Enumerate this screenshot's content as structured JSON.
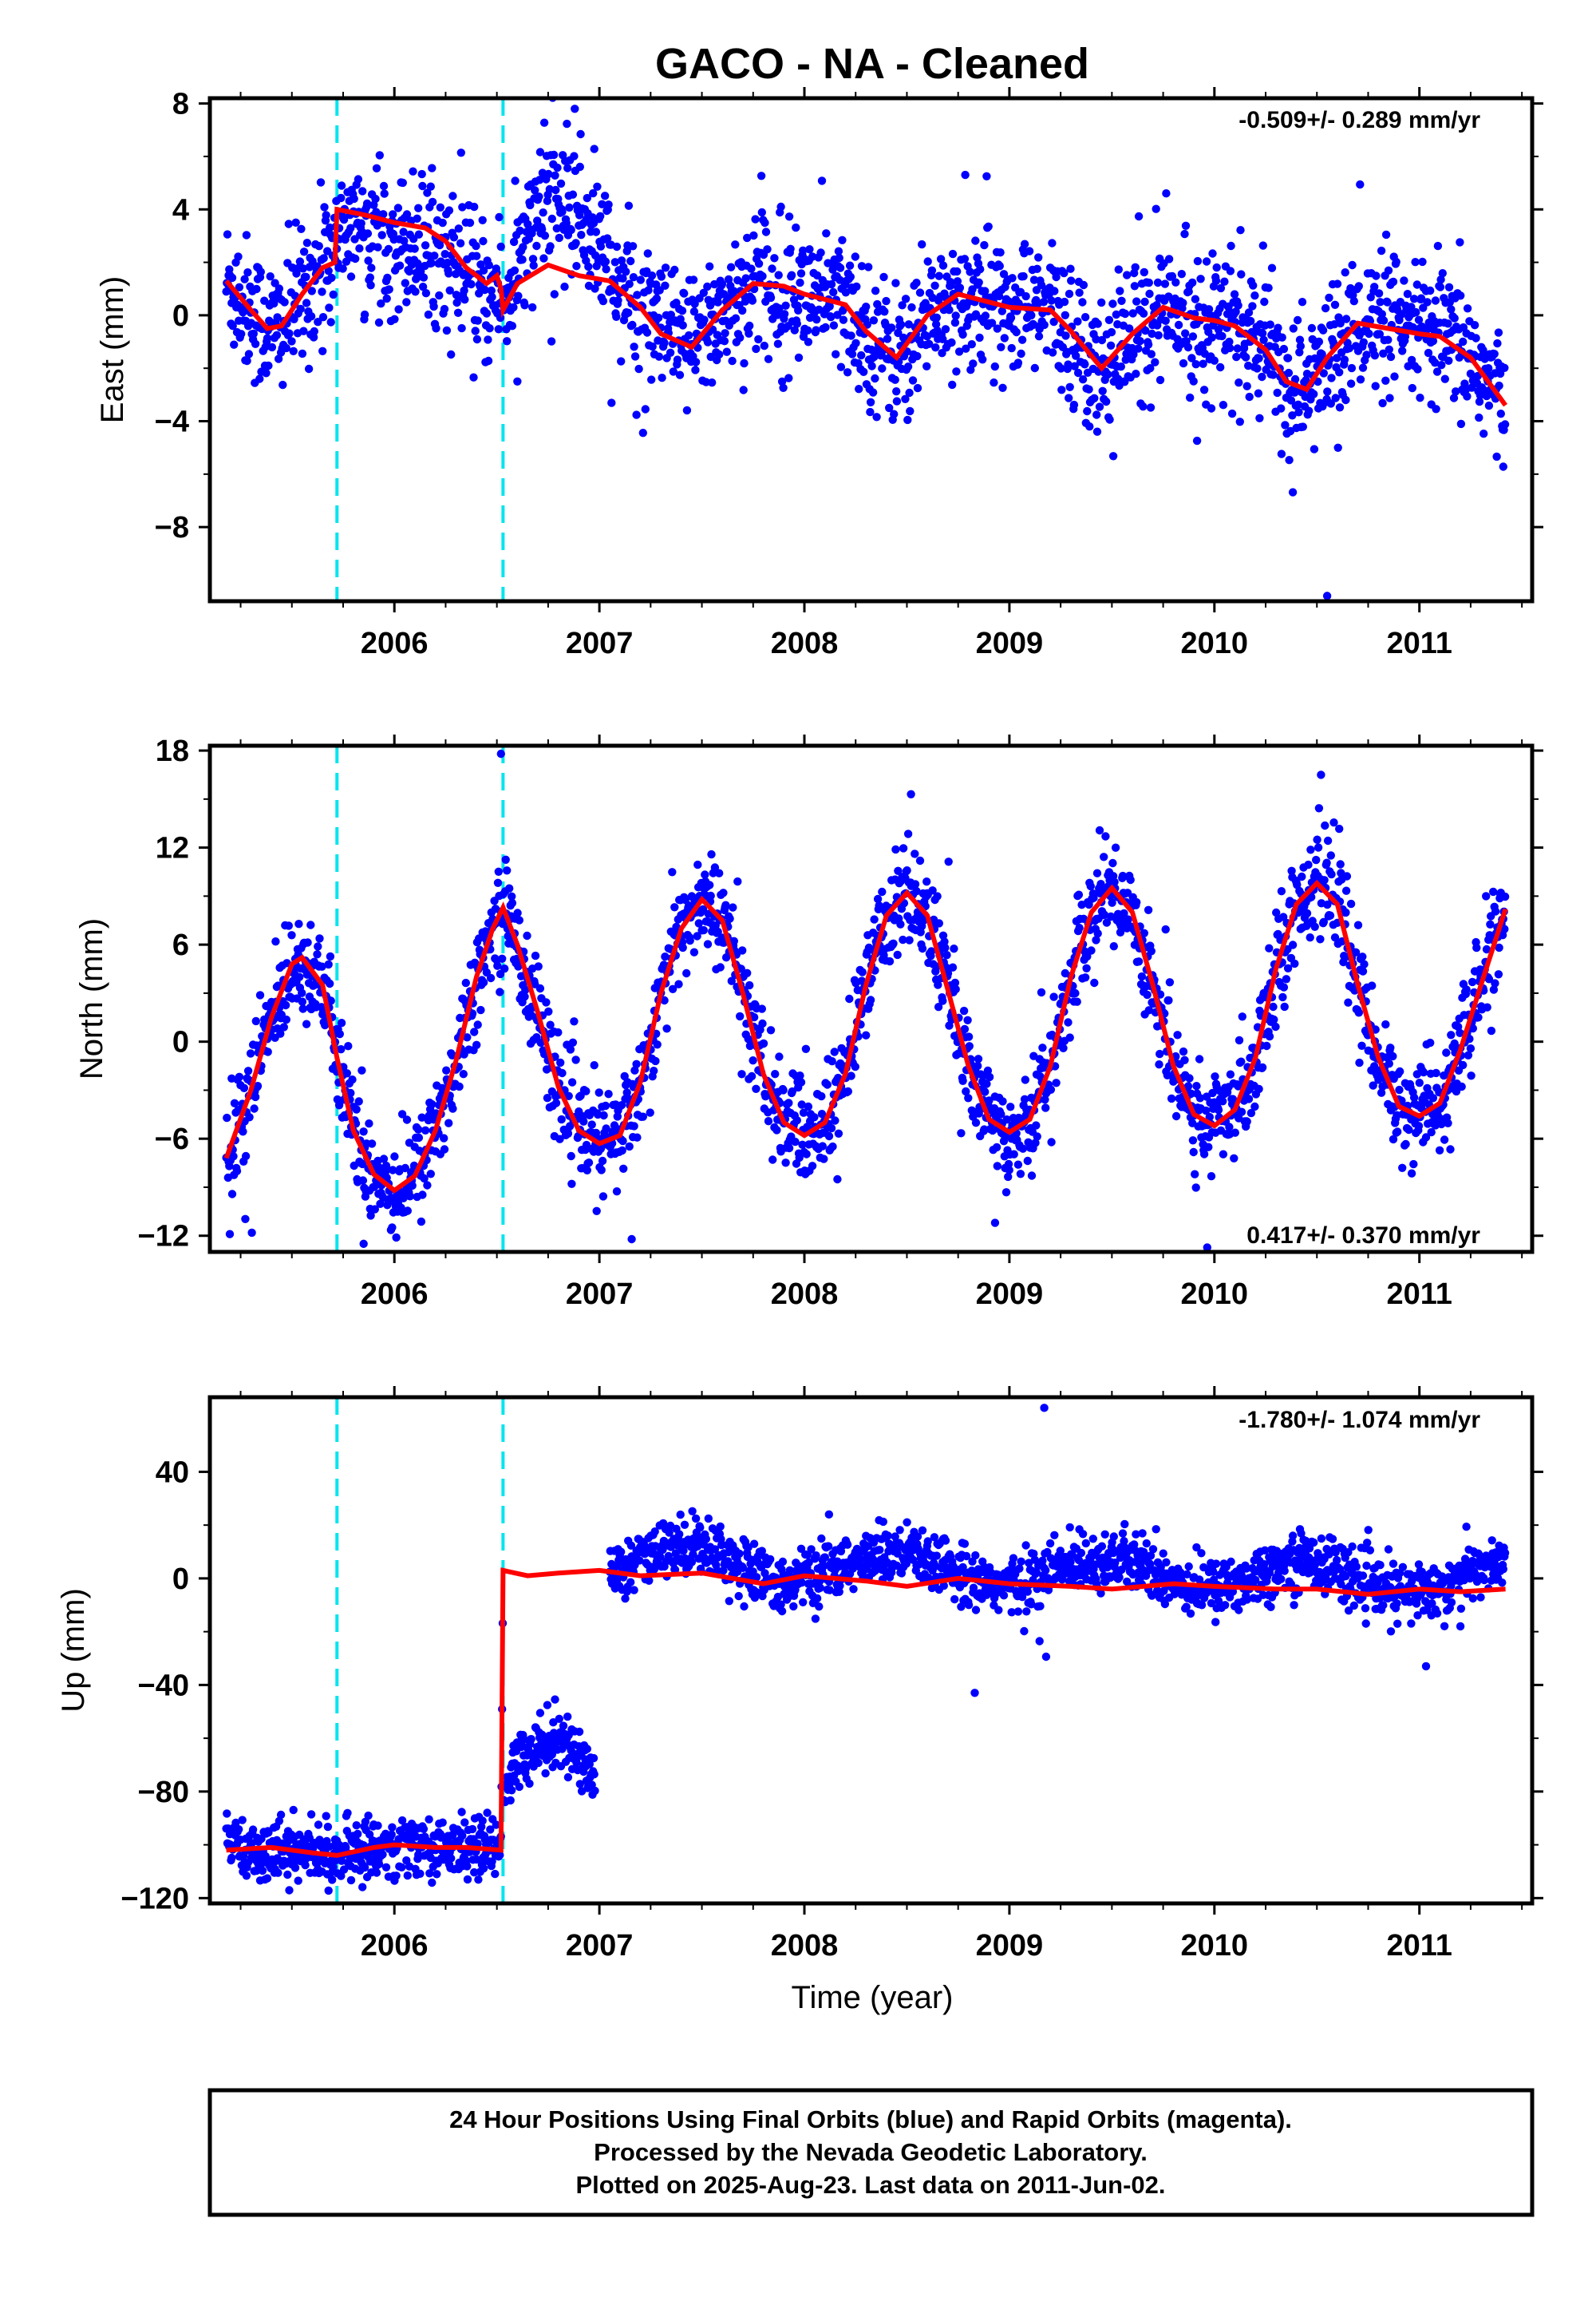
{
  "title": "GACO  - NA - Cleaned",
  "colors": {
    "final_orbits": "#0000ff",
    "rapid_orbits": "#ff00ff",
    "model_fit": "#ff0000",
    "offset_lines": "#00e5ee",
    "frame": "#000000"
  },
  "chart_data": [
    {
      "type": "scatter",
      "panel": "east",
      "ylabel": "East (mm)",
      "xlabel": "",
      "rate": "-0.509+/- 0.289 mm/yr",
      "rate_position": "top-right",
      "xlim": [
        2005.1,
        2011.55
      ],
      "ylim": [
        -10.8,
        8.2
      ],
      "yticks": [
        8,
        4,
        0,
        -4,
        -8
      ],
      "ytick_labels": [
        "8",
        "4",
        "0",
        "−4",
        "−8"
      ],
      "xticks": [
        2006,
        2007,
        2008,
        2009,
        2010,
        2011
      ],
      "xtick_labels": [
        "2006",
        "2007",
        "2008",
        "2009",
        "2010",
        "2011"
      ],
      "offsets": [
        2005.72,
        2006.53
      ],
      "model": {
        "name": "model fit",
        "x": [
          2005.18,
          2005.3,
          2005.38,
          2005.45,
          2005.55,
          2005.65,
          2005.71,
          2005.72,
          2005.85,
          2006.0,
          2006.15,
          2006.25,
          2006.35,
          2006.45,
          2006.5,
          2006.52,
          2006.53,
          2006.6,
          2006.75,
          2006.9,
          2007.05,
          2007.2,
          2007.3,
          2007.45,
          2007.6,
          2007.75,
          2007.9,
          2008.0,
          2008.2,
          2008.3,
          2008.45,
          2008.6,
          2008.75,
          2008.9,
          2009.0,
          2009.2,
          2009.3,
          2009.45,
          2009.6,
          2009.75,
          2009.9,
          2010.0,
          2010.1,
          2010.25,
          2010.35,
          2010.45,
          2010.55,
          2010.7,
          2010.85,
          2011.0,
          2011.1,
          2011.25,
          2011.42
        ],
        "y": [
          1.3,
          0.2,
          -0.5,
          -0.4,
          0.8,
          1.8,
          2.0,
          4.0,
          3.8,
          3.5,
          3.3,
          2.8,
          1.8,
          1.2,
          1.5,
          1.0,
          0.2,
          1.2,
          1.9,
          1.5,
          1.3,
          0.3,
          -0.7,
          -1.2,
          0.2,
          1.2,
          1.1,
          0.8,
          0.4,
          -0.6,
          -1.6,
          0.0,
          0.8,
          0.5,
          0.3,
          0.2,
          -0.6,
          -2.0,
          -0.7,
          0.3,
          -0.1,
          -0.2,
          -0.4,
          -1.3,
          -2.5,
          -2.8,
          -1.6,
          -0.3,
          -0.5,
          -0.7,
          -0.8,
          -1.6,
          -3.4
        ]
      },
      "points": "Final-orbit daily positions (blue), about 2000 daily points from 2005.18 to 2011.42 scattered around the model fit; extremes near +7.8 mm (late 2006) and -10.6 mm (mid 2010)."
    },
    {
      "type": "scatter",
      "panel": "north",
      "ylabel": "North (mm)",
      "xlabel": "",
      "rate": "0.417+/- 0.370 mm/yr",
      "rate_position": "bottom-right",
      "xlim": [
        2005.1,
        2011.55
      ],
      "ylim": [
        -13,
        18.3
      ],
      "yticks": [
        18,
        12,
        6,
        0,
        -6,
        -12
      ],
      "ytick_labels": [
        "18",
        "12",
        "6",
        "0",
        "−6",
        "−12"
      ],
      "xticks": [
        2006,
        2007,
        2008,
        2009,
        2010,
        2011
      ],
      "xtick_labels": [
        "2006",
        "2007",
        "2008",
        "2009",
        "2010",
        "2011"
      ],
      "offsets": [
        2005.72,
        2006.53
      ],
      "model": {
        "name": "model fit",
        "x": [
          2005.18,
          2005.3,
          2005.4,
          2005.5,
          2005.55,
          2005.65,
          2005.72,
          2005.8,
          2005.9,
          2006.0,
          2006.1,
          2006.2,
          2006.3,
          2006.4,
          2006.48,
          2006.53,
          2006.6,
          2006.7,
          2006.8,
          2006.9,
          2007.0,
          2007.1,
          2007.2,
          2007.3,
          2007.4,
          2007.5,
          2007.6,
          2007.7,
          2007.8,
          2007.9,
          2008.0,
          2008.1,
          2008.2,
          2008.3,
          2008.4,
          2008.5,
          2008.6,
          2008.7,
          2008.8,
          2008.9,
          2009.0,
          2009.1,
          2009.2,
          2009.3,
          2009.4,
          2009.5,
          2009.6,
          2009.7,
          2009.8,
          2009.9,
          2010.0,
          2010.1,
          2010.2,
          2010.3,
          2010.4,
          2010.5,
          2010.6,
          2010.7,
          2010.8,
          2010.9,
          2011.0,
          2011.1,
          2011.2,
          2011.3,
          2011.42
        ],
        "y": [
          -7.2,
          -3.0,
          1.5,
          4.8,
          5.2,
          3.5,
          -1.0,
          -5.5,
          -8.2,
          -9.2,
          -8.3,
          -5.5,
          -1.2,
          4.0,
          7.0,
          8.3,
          6.0,
          1.8,
          -2.8,
          -5.5,
          -6.3,
          -5.8,
          -2.5,
          3.0,
          7.0,
          8.8,
          7.5,
          3.0,
          -2.0,
          -5.0,
          -5.8,
          -5.0,
          -2.0,
          3.5,
          7.8,
          9.2,
          7.8,
          3.2,
          -1.5,
          -4.8,
          -5.6,
          -4.8,
          -1.5,
          4.0,
          8.0,
          9.5,
          8.0,
          3.5,
          -1.5,
          -4.5,
          -5.2,
          -4.2,
          -1.0,
          4.5,
          8.5,
          9.8,
          8.5,
          3.5,
          -1.0,
          -4.0,
          -4.6,
          -3.8,
          -0.5,
          3.5,
          8.2
        ]
      },
      "points": "Final-orbit daily positions (blue), about 2000 daily points following the annual cycle of the model fit; extremes near +17.8 mm (mid 2006) and -12.5 mm (late 2005)."
    },
    {
      "type": "scatter",
      "panel": "up",
      "ylabel": "Up (mm)",
      "xlabel": "Time (year)",
      "rate": "-1.780+/- 1.074 mm/yr",
      "rate_position": "top-right",
      "xlim": [
        2005.1,
        2011.55
      ],
      "ylim": [
        -122,
        68
      ],
      "yticks": [
        40,
        0,
        -40,
        -80,
        -120
      ],
      "ytick_labels": [
        "40",
        "0",
        "−40",
        "−80",
        "−120"
      ],
      "xticks": [
        2006,
        2007,
        2008,
        2009,
        2010,
        2011
      ],
      "xtick_labels": [
        "2006",
        "2007",
        "2008",
        "2009",
        "2010",
        "2011"
      ],
      "offsets": [
        2005.72,
        2006.53
      ],
      "model": {
        "name": "model fit",
        "x": [
          2005.18,
          2005.4,
          2005.6,
          2005.72,
          2005.9,
          2006.0,
          2006.2,
          2006.35,
          2006.52,
          2006.53,
          2006.65,
          2006.8,
          2007.0,
          2007.2,
          2007.5,
          2007.8,
          2008.0,
          2008.3,
          2008.5,
          2008.75,
          2009.0,
          2009.3,
          2009.5,
          2009.8,
          2010.0,
          2010.3,
          2010.5,
          2010.75,
          2011.0,
          2011.2,
          2011.42
        ],
        "y": [
          -102,
          -101,
          -103,
          -104,
          -101,
          -100,
          -101,
          -101,
          -102,
          3,
          1,
          2,
          3,
          1,
          2,
          -2,
          1,
          -1,
          -3,
          0,
          -2,
          -3,
          -4,
          -2,
          -3,
          -4,
          -4,
          -6,
          -4,
          -5,
          -4
        ]
      },
      "points": "Final-orbit daily positions (blue): about -100 mm before 2006.53, about -70 mm from 2006.53 to 2007.0, then around 0 mm from 2007.0 to 2011.42; one outlier near +64 mm around 2009.15."
    }
  ],
  "footer": {
    "line1": "24 Hour Positions Using Final Orbits (blue) and Rapid Orbits (magenta).",
    "line2": "Processed by the Nevada Geodetic Laboratory.",
    "line3": "Plotted on 2025-Aug-23. Last data on 2011-Jun-02."
  }
}
